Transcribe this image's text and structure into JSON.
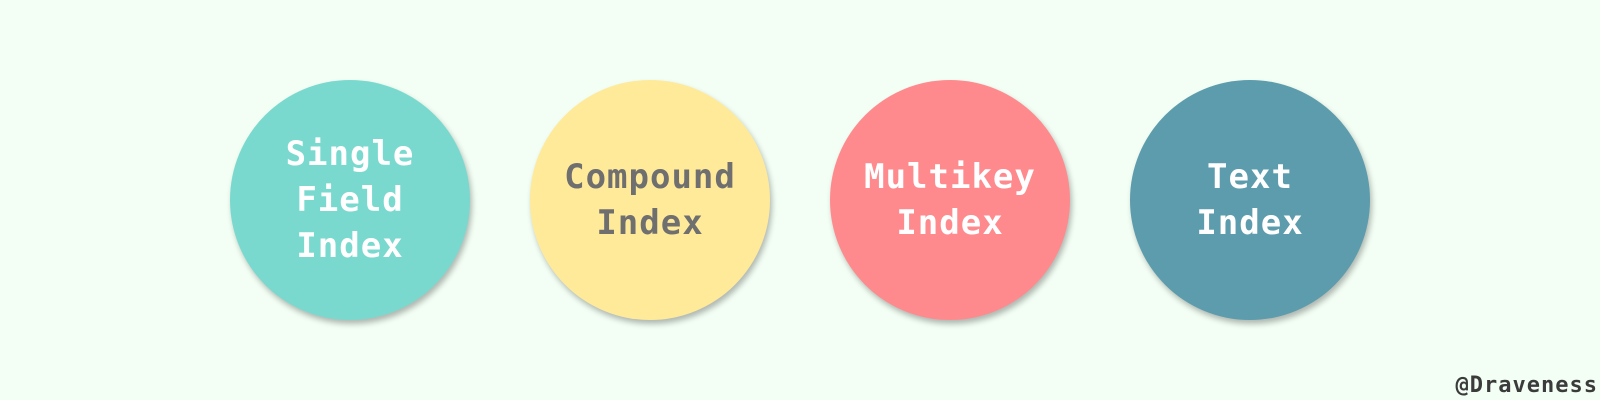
{
  "diagram": {
    "index_types": [
      {
        "label": "Single\nField\nIndex",
        "fill": "#7ad9cf",
        "text_color": "#ffffff"
      },
      {
        "label": "Compound\nIndex",
        "fill": "#ffea9a",
        "text_color": "#6f6f6f"
      },
      {
        "label": "Multikey\nIndex",
        "fill": "#ff8a8e",
        "text_color": "#ffffff"
      },
      {
        "label": "Text\nIndex",
        "fill": "#5c9cad",
        "text_color": "#ffffff"
      }
    ]
  },
  "credit": "@Draveness",
  "background": "#f3fff5"
}
